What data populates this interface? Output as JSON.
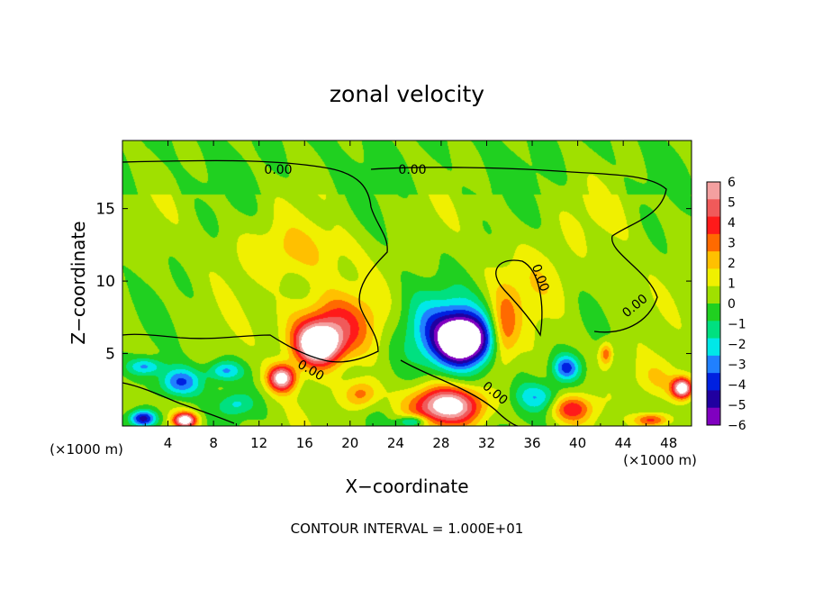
{
  "chart_data": {
    "type": "heatmap",
    "title": "zonal velocity",
    "xlabel": "X−coordinate",
    "ylabel": "Z−coordinate",
    "x_unit_left": "(×1000 m)",
    "x_unit_right": "(×1000 m)",
    "footer": "CONTOUR INTERVAL = 1.000E+01",
    "xlim": [
      0,
      50
    ],
    "ylim": [
      0,
      19.7
    ],
    "x_ticks": [
      "4",
      "8",
      "12",
      "16",
      "20",
      "24",
      "28",
      "32",
      "36",
      "40",
      "44",
      "48"
    ],
    "y_ticks": [
      "5",
      "10",
      "15"
    ],
    "colorbar": {
      "range": [
        -6,
        6
      ],
      "ticks": [
        "6",
        "5",
        "4",
        "3",
        "2",
        "1",
        "0",
        "−1",
        "−2",
        "−3",
        "−4",
        "−5",
        "−6"
      ],
      "colors": [
        "#f4a0a0",
        "#f05a5a",
        "#ff1a1a",
        "#ff6a00",
        "#ffc000",
        "#f0f000",
        "#a0e000",
        "#20d020",
        "#00e080",
        "#00e8e8",
        "#2080ff",
        "#0020e0",
        "#2000a0",
        "#8000c0"
      ]
    },
    "contour_labels": [
      "0.00",
      "0.00",
      "0.00",
      "0.00",
      "0.00",
      "0.00"
    ],
    "field": {
      "background": 0.3,
      "features": [
        {
          "x": 17.2,
          "z": 5.6,
          "value": 7.5,
          "sx": 2.0,
          "sz": 1.4,
          "label": "white saturated core"
        },
        {
          "x": 18.5,
          "z": 7.0,
          "value": 3.5,
          "sx": 4.0,
          "sz": 2.2
        },
        {
          "x": 30,
          "z": 5.9,
          "value": -7.5,
          "sx": 2.2,
          "sz": 1.6,
          "label": "purple saturated core"
        },
        {
          "x": 28.5,
          "z": 6.5,
          "value": -3.5,
          "sx": 4.2,
          "sz": 2.6
        },
        {
          "x": 28.5,
          "z": 1.4,
          "value": 6.5,
          "sx": 3.2,
          "sz": 1.3
        },
        {
          "x": 33.5,
          "z": 6.5,
          "value": 3.0,
          "sx": 1.2,
          "sz": 2.4
        },
        {
          "x": 15,
          "z": 12.0,
          "value": 1.6,
          "sx": 5.0,
          "sz": 2.0
        },
        {
          "x": 36,
          "z": 9.5,
          "value": 1.2,
          "sx": 4.0,
          "sz": 3.0
        },
        {
          "x": 5,
          "z": 3.0,
          "value": -4.0,
          "sx": 1.8,
          "sz": 1.0
        },
        {
          "x": 2,
          "z": 4.1,
          "value": -3.0,
          "sx": 1.5,
          "sz": 0.6
        },
        {
          "x": 9,
          "z": 3.8,
          "value": -3.0,
          "sx": 1.5,
          "sz": 0.7
        },
        {
          "x": 14,
          "z": 3.3,
          "value": 6.5,
          "sx": 1.2,
          "sz": 0.9
        },
        {
          "x": 21,
          "z": 2.2,
          "value": 3.0,
          "sx": 1.5,
          "sz": 1.0
        },
        {
          "x": 36.5,
          "z": 2.0,
          "value": -2.5,
          "sx": 2.0,
          "sz": 1.0
        },
        {
          "x": 39.5,
          "z": 1.2,
          "value": 3.5,
          "sx": 1.8,
          "sz": 0.9
        },
        {
          "x": 39,
          "z": 4.0,
          "value": -4.0,
          "sx": 1.2,
          "sz": 0.9
        },
        {
          "x": 47,
          "z": 3.2,
          "value": 1.5,
          "sx": 2.5,
          "sz": 1.5
        },
        {
          "x": 49.2,
          "z": 2.6,
          "value": 7.0,
          "sx": 0.9,
          "sz": 0.7
        },
        {
          "x": 42.5,
          "z": 5.0,
          "value": 3.0,
          "sx": 0.6,
          "sz": 0.8
        },
        {
          "x": 1.8,
          "z": 0.5,
          "value": -5.5,
          "sx": 1.2,
          "sz": 0.6
        },
        {
          "x": 5.5,
          "z": 0.4,
          "value": 7.0,
          "sx": 1.0,
          "sz": 0.5
        },
        {
          "x": 25.5,
          "z": 0.3,
          "value": -3.5,
          "sx": 1.2,
          "sz": 0.4
        },
        {
          "x": 46.5,
          "z": 0.4,
          "value": 4.0,
          "sx": 1.5,
          "sz": 0.5
        },
        {
          "x": 10,
          "z": 1.5,
          "value": -2.0,
          "sx": 1.5,
          "sz": 0.8
        },
        {
          "x": 43,
          "z": 15.0,
          "value": 0.6,
          "sx": 3.0,
          "sz": 3.0
        }
      ]
    }
  }
}
